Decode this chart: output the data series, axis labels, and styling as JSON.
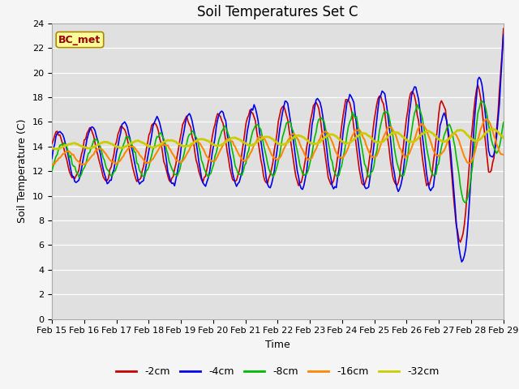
{
  "title": "Soil Temperatures Set C",
  "xlabel": "Time",
  "ylabel": "Soil Temperature (C)",
  "ylim": [
    0,
    24
  ],
  "yticks": [
    0,
    2,
    4,
    6,
    8,
    10,
    12,
    14,
    16,
    18,
    20,
    22,
    24
  ],
  "xtick_labels": [
    "Feb 15",
    "Feb 16",
    "Feb 17",
    "Feb 18",
    "Feb 19",
    "Feb 20",
    "Feb 21",
    "Feb 22",
    "Feb 23",
    "Feb 24",
    "Feb 25",
    "Feb 26",
    "Feb 27",
    "Feb 28",
    "Feb 29"
  ],
  "series": {
    "-2cm": {
      "color": "#cc0000",
      "lw": 1.2
    },
    "-4cm": {
      "color": "#0000ee",
      "lw": 1.2
    },
    "-8cm": {
      "color": "#00bb00",
      "lw": 1.2
    },
    "-16cm": {
      "color": "#ff8800",
      "lw": 1.5
    },
    "-32cm": {
      "color": "#cccc00",
      "lw": 2.0
    }
  },
  "legend_order": [
    "-2cm",
    "-4cm",
    "-8cm",
    "-16cm",
    "-32cm"
  ],
  "plot_bg": "#e0e0e0",
  "fig_bg": "#f5f5f5",
  "grid_color": "#ffffff",
  "annotation": "BC_met",
  "annotation_color": "#990000",
  "annotation_bg": "#ffff99",
  "annotation_border": "#aa8800",
  "title_fontsize": 12,
  "axis_fontsize": 9,
  "tick_fontsize": 8
}
